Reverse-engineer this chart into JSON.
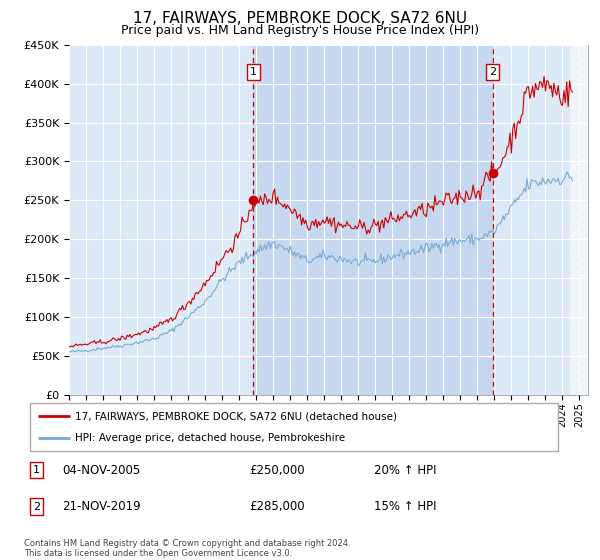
{
  "title": "17, FAIRWAYS, PEMBROKE DOCK, SA72 6NU",
  "subtitle": "Price paid vs. HM Land Registry's House Price Index (HPI)",
  "title_fontsize": 11,
  "subtitle_fontsize": 9,
  "ylim": [
    0,
    450000
  ],
  "yticks": [
    0,
    50000,
    100000,
    150000,
    200000,
    250000,
    300000,
    350000,
    400000,
    450000
  ],
  "xlim_start": 1995.0,
  "xlim_end": 2025.5,
  "background_color": "#ffffff",
  "plot_bg_color": "#dce9f7",
  "shade_bg_color": "#c5d8f0",
  "grid_color": "#ffffff",
  "red_line_color": "#cc0000",
  "blue_line_color": "#7aaad0",
  "sale1_x": 2005.84,
  "sale1_y": 250000,
  "sale1_label": "04-NOV-2005",
  "sale1_price": "£250,000",
  "sale1_hpi": "20% ↑ HPI",
  "sale2_x": 2019.89,
  "sale2_y": 285000,
  "sale2_label": "21-NOV-2019",
  "sale2_price": "£285,000",
  "sale2_hpi": "15% ↑ HPI",
  "legend_line1": "17, FAIRWAYS, PEMBROKE DOCK, SA72 6NU (detached house)",
  "legend_line2": "HPI: Average price, detached house, Pembrokeshire",
  "footnote": "Contains HM Land Registry data © Crown copyright and database right 2024.\nThis data is licensed under the Open Government Licence v3.0."
}
